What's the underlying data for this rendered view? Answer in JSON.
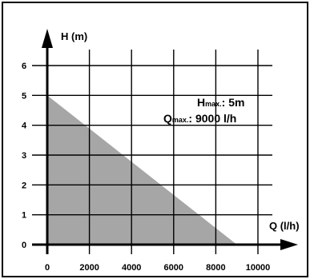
{
  "chart_data": {
    "type": "area",
    "title": "",
    "xlabel": "Q (l/h)",
    "ylabel": "H (m)",
    "xlim": [
      0,
      10000
    ],
    "ylim": [
      0,
      6
    ],
    "x_ticks": [
      "0",
      "2000",
      "4000",
      "6000",
      "8000",
      "10000"
    ],
    "y_ticks": [
      "0",
      "1",
      "2",
      "3",
      "4",
      "5",
      "6"
    ],
    "grid": true,
    "series": [
      {
        "x": [
          0,
          9000
        ],
        "y": [
          5,
          0
        ],
        "color": "#a6a6a6"
      }
    ],
    "annotations": {
      "hmax_label": "H",
      "hmax_sub": "max.",
      "hmax_value": ": 5m",
      "qmax_label": "Q",
      "qmax_sub": "max.",
      "qmax_value": ": 9000 l/h"
    }
  }
}
